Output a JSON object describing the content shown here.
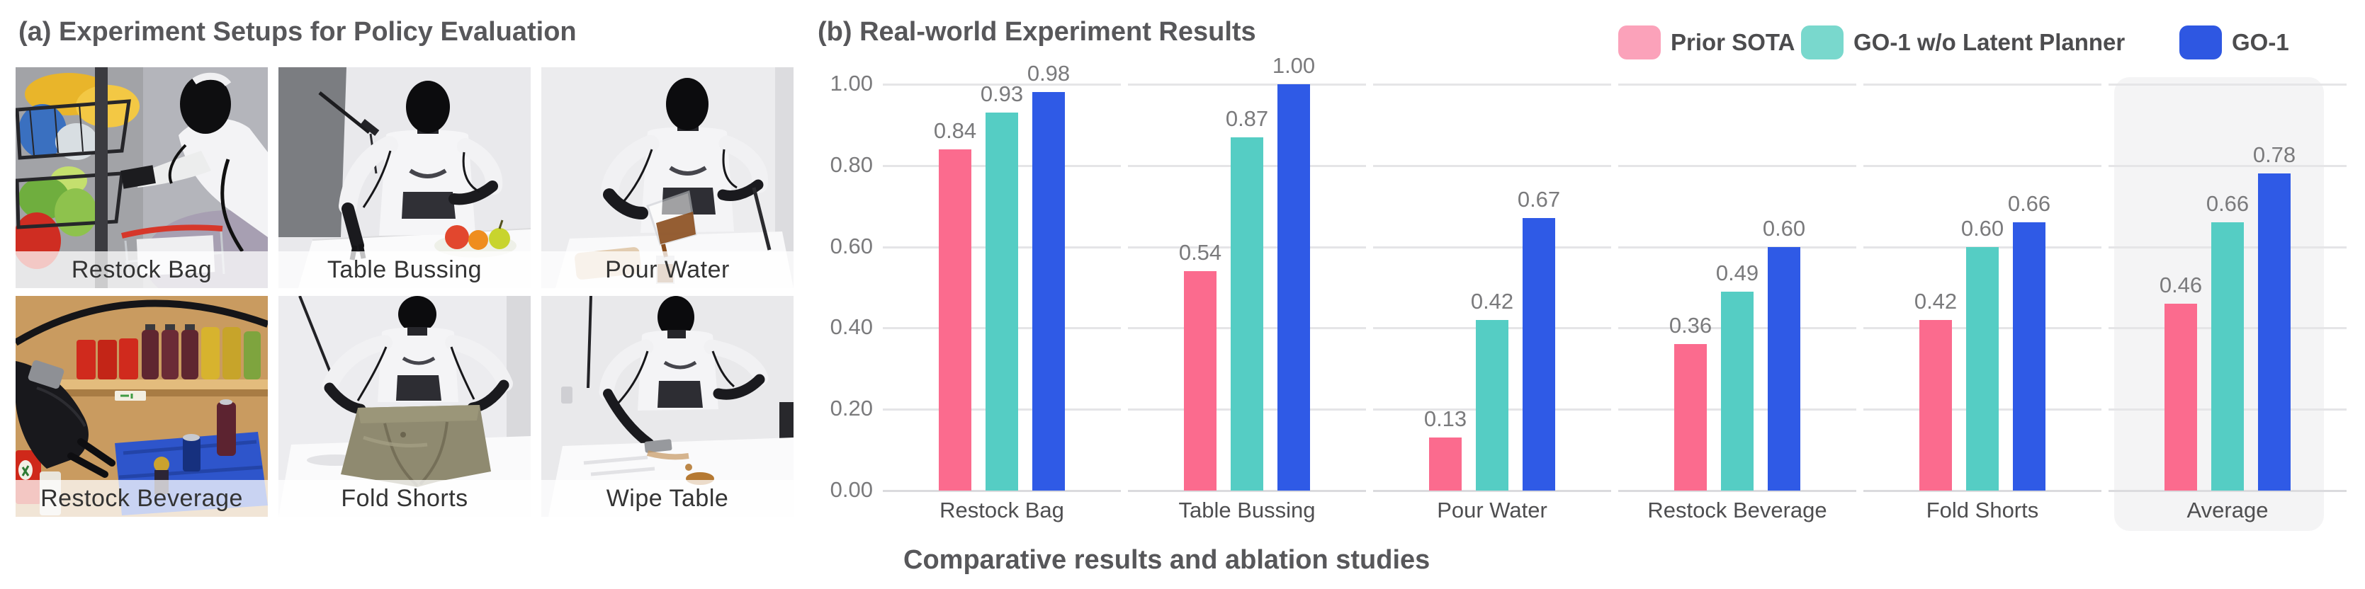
{
  "figure": {
    "panel_a": {
      "title": "(a) Experiment Setups for Policy Evaluation",
      "setups": [
        {
          "label": "Restock Bag"
        },
        {
          "label": "Table Bussing"
        },
        {
          "label": "Pour Water"
        },
        {
          "label": "Restock Beverage"
        },
        {
          "label": "Fold Shorts"
        },
        {
          "label": "Wipe Table"
        }
      ]
    },
    "panel_b": {
      "title": "(b) Real-world Experiment Results",
      "caption": "Comparative results and ablation studies"
    }
  },
  "chart_data": {
    "type": "bar",
    "title": "(b) Real-world Experiment Results",
    "caption": "Comparative results and ablation studies",
    "categories": [
      "Restock Bag",
      "Table Bussing",
      "Pour Water",
      "Restock Beverage",
      "Fold Shorts",
      "Average"
    ],
    "series": [
      {
        "name": "Prior SOTA",
        "color": "#FB6B8E",
        "legend_color": "#FBA2BA",
        "values": [
          0.84,
          0.54,
          0.13,
          0.36,
          0.42,
          0.46
        ]
      },
      {
        "name": "GO-1 w/o Latent Planner",
        "color": "#55CDC4",
        "legend_color": "#79D8CD",
        "values": [
          0.93,
          0.87,
          0.42,
          0.49,
          0.6,
          0.66
        ]
      },
      {
        "name": "GO-1",
        "color": "#2F5AE6",
        "legend_color": "#2E57E2",
        "values": [
          0.98,
          1.0,
          0.67,
          0.6,
          0.66,
          0.78
        ]
      }
    ],
    "yticks": [
      "0.00",
      "0.20",
      "0.40",
      "0.60",
      "0.80",
      "1.00"
    ],
    "ylim": [
      0,
      1
    ],
    "grid": true,
    "legend_position": "top-right",
    "value_labels": true,
    "highlight_category": "Average",
    "colors": {
      "grid": "#E5E5E7",
      "axis_line": "#DBDBDE",
      "highlight_bg": "#F4F4F5",
      "value_label": "#7A7A7C",
      "tick_label": "#7A7A7C",
      "category_label": "#4E4E50",
      "title": "#57575A"
    }
  }
}
